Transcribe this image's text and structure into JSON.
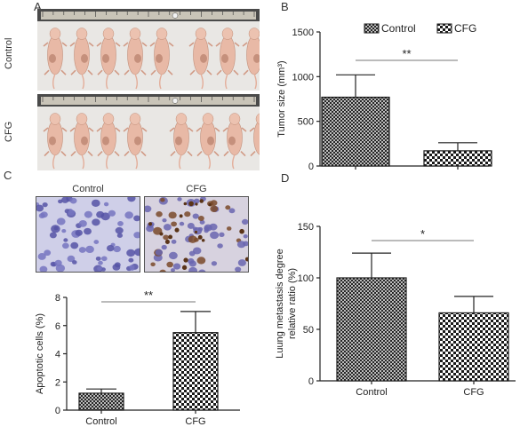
{
  "panels": {
    "a": {
      "letter": "A",
      "rows": [
        {
          "label": "Control",
          "mice": 8,
          "ruler_marks": [
            0,
            1,
            2,
            3,
            4,
            5,
            6,
            7,
            8,
            9,
            10,
            11,
            12,
            13,
            14,
            15,
            16,
            17,
            18,
            19,
            20
          ]
        },
        {
          "label": "CFG",
          "mice": 8,
          "ruler_marks": [
            0,
            1,
            2,
            3,
            4,
            5,
            6,
            7,
            8,
            9,
            10,
            11,
            12,
            13,
            14,
            15,
            16,
            17,
            18,
            19,
            20
          ]
        }
      ]
    },
    "b": {
      "letter": "B"
    },
    "c": {
      "letter": "C",
      "micro_labels": [
        "Control",
        "CFG"
      ]
    },
    "d": {
      "letter": "D"
    }
  },
  "chart_data": [
    {
      "id": "tumor",
      "type": "bar",
      "categories": [
        "Control",
        "CFG"
      ],
      "values": [
        770,
        170
      ],
      "errors": [
        250,
        90
      ],
      "ylabel": "Tumor size (mm³)",
      "ylim": [
        0,
        1500
      ],
      "yticks": [
        0,
        500,
        1000,
        1500
      ],
      "xticklabels": false,
      "significance": "**",
      "legend": [
        {
          "name": "Control",
          "pattern": "crosshatch"
        },
        {
          "name": "CFG",
          "pattern": "checker"
        }
      ],
      "grid": false
    },
    {
      "id": "apoptotic",
      "type": "bar",
      "categories": [
        "Control",
        "CFG"
      ],
      "values": [
        1.2,
        5.5
      ],
      "errors": [
        0.3,
        1.5
      ],
      "ylabel": "Apoptotic cells (%)",
      "ylim": [
        0,
        8
      ],
      "yticks": [
        0,
        2,
        4,
        6,
        8
      ],
      "xticklabels": true,
      "significance": "**",
      "grid": false
    },
    {
      "id": "metastasis",
      "type": "bar",
      "categories": [
        "Control",
        "CFG"
      ],
      "values": [
        100,
        66
      ],
      "errors": [
        24,
        16
      ],
      "ylabel": [
        "Luung metastasis degree",
        "relative ratio (%)"
      ],
      "ylim": [
        0,
        150
      ],
      "yticks": [
        0,
        50,
        100,
        150
      ],
      "xticklabels": true,
      "significance": "*",
      "grid": false
    }
  ],
  "colors": {
    "axis": "#222222",
    "bar_ink": "#1a1a1a",
    "photo_bg": "#3a3a3a",
    "tissue_bg": "#cdcde6",
    "nucleus": "#5a5aa8"
  }
}
